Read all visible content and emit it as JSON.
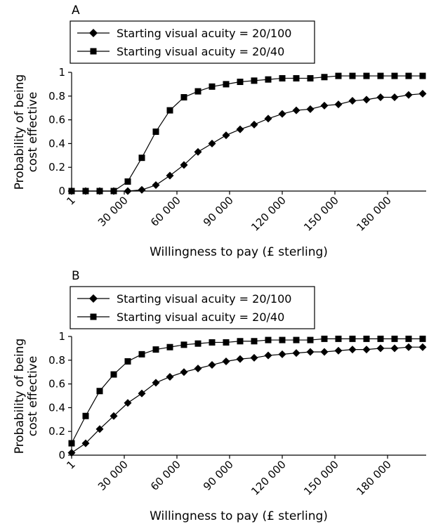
{
  "chart_data": [
    {
      "type": "line",
      "panel_label": "A",
      "xlabel": "Willingness to pay (£ sterling)",
      "ylabel_lines": [
        "Probability of being",
        "cost effective"
      ],
      "xlim": [
        1,
        200000
      ],
      "ylim": [
        0,
        1
      ],
      "x_ticks": [
        1,
        30000,
        60000,
        90000,
        120000,
        150000,
        180000
      ],
      "x_tick_labels": [
        "1",
        "30 000",
        "60 000",
        "90 000",
        "120 000",
        "150 000",
        "180 000"
      ],
      "y_ticks": [
        0,
        0.2,
        0.4,
        0.6,
        0.8,
        1
      ],
      "y_tick_labels": [
        "0",
        "0.2",
        "0.4",
        "0.6",
        "0.8",
        "1"
      ],
      "grid": false,
      "legend_position": "top-left",
      "x": [
        1,
        8000,
        16000,
        24000,
        32000,
        40000,
        48000,
        56000,
        64000,
        72000,
        80000,
        88000,
        96000,
        104000,
        112000,
        120000,
        128000,
        136000,
        144000,
        152000,
        160000,
        168000,
        176000,
        184000,
        192000,
        200000
      ],
      "series": [
        {
          "name": "Starting visual acuity = 20/100",
          "marker": "diamond",
          "values": [
            0,
            0,
            0,
            0,
            0,
            0.01,
            0.05,
            0.13,
            0.22,
            0.33,
            0.4,
            0.47,
            0.52,
            0.56,
            0.61,
            0.65,
            0.68,
            0.69,
            0.72,
            0.73,
            0.76,
            0.77,
            0.79,
            0.79,
            0.81,
            0.82
          ]
        },
        {
          "name": "Starting visual acuity = 20/40",
          "marker": "square",
          "values": [
            0,
            0,
            0,
            0,
            0.08,
            0.28,
            0.5,
            0.68,
            0.79,
            0.84,
            0.88,
            0.9,
            0.92,
            0.93,
            0.94,
            0.95,
            0.95,
            0.95,
            0.96,
            0.97,
            0.97,
            0.97,
            0.97,
            0.97,
            0.97,
            0.97
          ]
        }
      ]
    },
    {
      "type": "line",
      "panel_label": "B",
      "xlabel": "Willingness to pay (£ sterling)",
      "ylabel_lines": [
        "Probability of being",
        "cost effective"
      ],
      "xlim": [
        1,
        200000
      ],
      "ylim": [
        0,
        1
      ],
      "x_ticks": [
        1,
        30000,
        60000,
        90000,
        120000,
        150000,
        180000
      ],
      "x_tick_labels": [
        "1",
        "30 000",
        "60 000",
        "90 000",
        "120 000",
        "150 000",
        "180 000"
      ],
      "y_ticks": [
        0,
        0.2,
        0.4,
        0.6,
        0.8,
        1
      ],
      "y_tick_labels": [
        "0",
        "0.2",
        "0.4",
        "0.6",
        "0.8",
        "1"
      ],
      "grid": false,
      "legend_position": "top-left",
      "x": [
        1,
        8000,
        16000,
        24000,
        32000,
        40000,
        48000,
        56000,
        64000,
        72000,
        80000,
        88000,
        96000,
        104000,
        112000,
        120000,
        128000,
        136000,
        144000,
        152000,
        160000,
        168000,
        176000,
        184000,
        192000,
        200000
      ],
      "series": [
        {
          "name": "Starting visual acuity = 20/100",
          "marker": "diamond",
          "values": [
            0.02,
            0.1,
            0.22,
            0.33,
            0.44,
            0.52,
            0.61,
            0.66,
            0.7,
            0.73,
            0.76,
            0.79,
            0.81,
            0.82,
            0.84,
            0.85,
            0.86,
            0.87,
            0.87,
            0.88,
            0.89,
            0.89,
            0.9,
            0.9,
            0.91,
            0.91
          ]
        },
        {
          "name": "Starting visual acuity = 20/40",
          "marker": "square",
          "values": [
            0.1,
            0.33,
            0.54,
            0.68,
            0.79,
            0.85,
            0.89,
            0.91,
            0.93,
            0.94,
            0.95,
            0.95,
            0.96,
            0.96,
            0.97,
            0.97,
            0.97,
            0.97,
            0.98,
            0.98,
            0.98,
            0.98,
            0.98,
            0.98,
            0.98,
            0.98
          ]
        }
      ]
    }
  ]
}
